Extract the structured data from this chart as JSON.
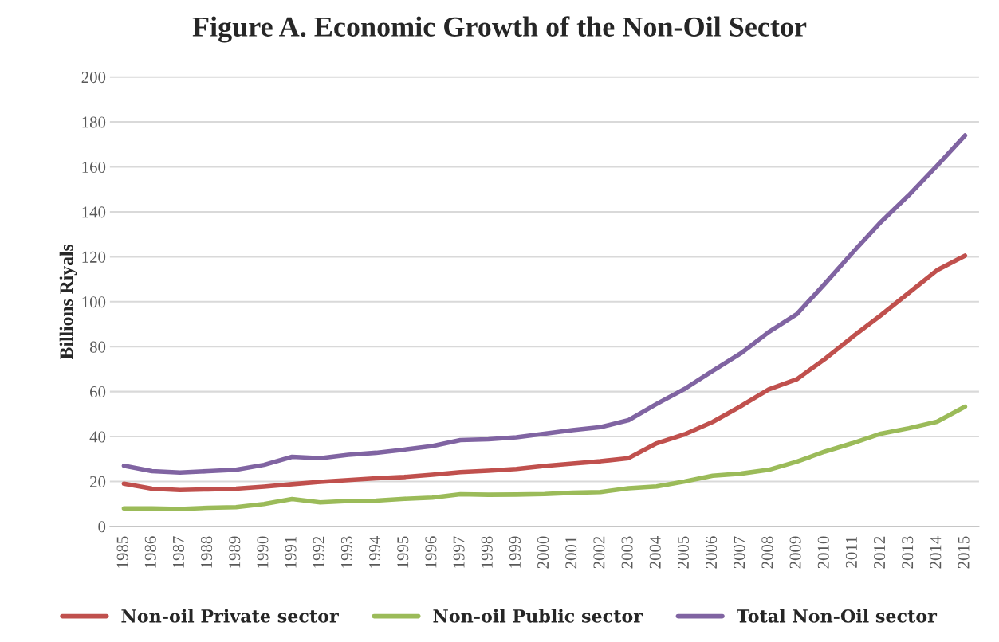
{
  "chart_data": {
    "type": "line",
    "title": "Figure A. Economic Growth of the Non-Oil Sector",
    "ylabel": "Billions Riyals",
    "categories": [
      "1985",
      "1986",
      "1987",
      "1988",
      "1989",
      "1990",
      "1991",
      "1992",
      "1993",
      "1994",
      "1995",
      "1996",
      "1997",
      "1998",
      "1999",
      "2000",
      "2001",
      "2002",
      "2003",
      "2004",
      "2005",
      "2006",
      "2007",
      "2008",
      "2009",
      "2010",
      "2011",
      "2012",
      "2013",
      "2014",
      "2015"
    ],
    "series": [
      {
        "name": "Non-oil Private sector",
        "color": "#c0504d",
        "values": [
          19,
          16.8,
          16.2,
          16.5,
          16.8,
          17.7,
          18.8,
          19.8,
          20.6,
          21.4,
          22,
          23,
          24.2,
          24.8,
          25.6,
          26.9,
          28,
          29,
          30.4,
          37,
          41,
          46.5,
          53.5,
          61,
          65.5,
          74.5,
          84.5,
          94,
          104,
          114,
          120.5
        ]
      },
      {
        "name": "Non-oil Public sector",
        "color": "#9bbb59",
        "values": [
          8,
          8,
          7.8,
          8.3,
          8.6,
          10,
          12.2,
          10.7,
          11.3,
          11.5,
          12.3,
          12.8,
          14.3,
          14.1,
          14.2,
          14.4,
          15,
          15.3,
          17,
          17.8,
          20,
          22.6,
          23.5,
          25.2,
          28.8,
          33.3,
          37.1,
          41.3,
          43.7,
          46.6,
          53.3
        ]
      },
      {
        "name": "Total Non-Oil sector",
        "color": "#8064a2",
        "values": [
          27,
          24.6,
          24,
          24.6,
          25.2,
          27.4,
          31,
          30.4,
          31.9,
          32.8,
          34.2,
          35.8,
          38.4,
          38.8,
          39.7,
          41.3,
          42.9,
          44.2,
          47.3,
          54.5,
          61.2,
          69.2,
          77,
          86.5,
          94.5,
          108,
          122,
          135.5,
          147.5,
          160.5,
          174
        ]
      }
    ],
    "ylim": [
      0,
      200
    ],
    "yticks": [
      0,
      20,
      40,
      60,
      80,
      100,
      120,
      140,
      160,
      180,
      200
    ],
    "grid": "y",
    "legend": "bottom",
    "marker": "none",
    "line_style": "solid"
  }
}
